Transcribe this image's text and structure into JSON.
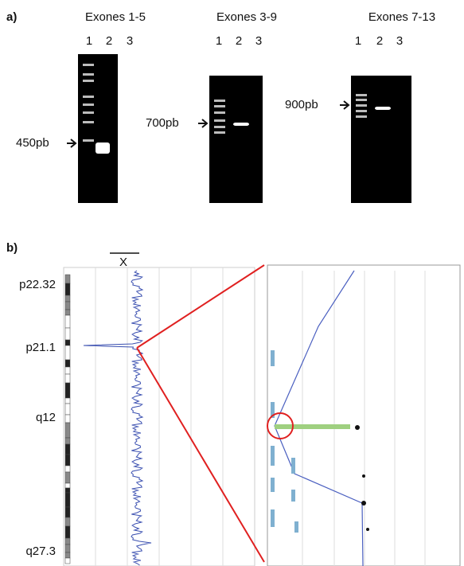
{
  "panel_a": {
    "label": "a)",
    "gels": [
      {
        "title": "Exones 1-5",
        "lanes": [
          "1",
          "2",
          "3"
        ],
        "size": "450pb"
      },
      {
        "title": "Exones 3-9",
        "lanes": [
          "1",
          "2",
          "3"
        ],
        "size": "700pb"
      },
      {
        "title": "Exones 7-13",
        "lanes": [
          "1",
          "2",
          "3"
        ],
        "size": "900pb"
      }
    ]
  },
  "panel_b": {
    "label": "b)",
    "chromosome": "X",
    "bands": [
      "p22.32",
      "p21.1",
      "q12",
      "q27.3"
    ]
  }
}
